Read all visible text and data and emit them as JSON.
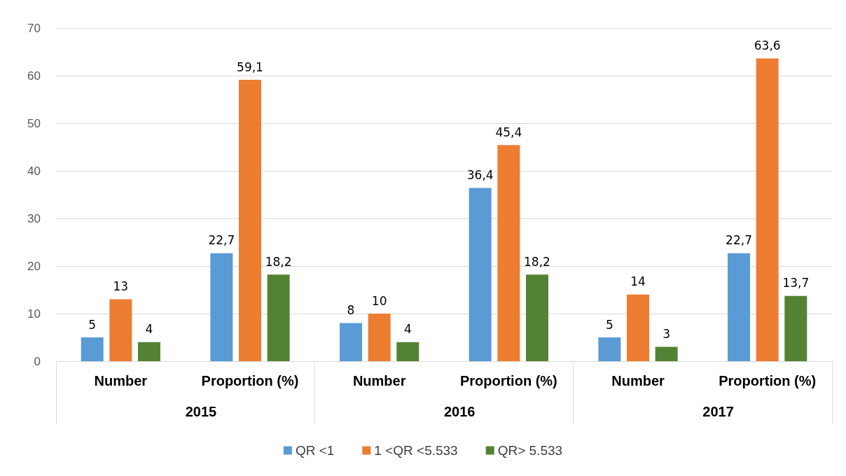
{
  "chart_data": {
    "type": "bar",
    "categories": [
      "Number",
      "Proportion (%)",
      "Number",
      "Proportion (%)",
      "Number",
      "Proportion (%)"
    ],
    "annotations": [
      "2015",
      "2016",
      "2017"
    ],
    "series": [
      {
        "name": "QR <1",
        "color": "#5b9bd5",
        "values": [
          5,
          22.7,
          8,
          36.4,
          5,
          22.7
        ],
        "value_labels": [
          "5",
          "22,7",
          "8",
          "36,4",
          "5",
          "22,7"
        ]
      },
      {
        "name": "1 <QR <5.533",
        "color": "#ed7d31",
        "values": [
          13,
          59.1,
          10,
          45.4,
          14,
          63.6
        ],
        "value_labels": [
          "13",
          "59,1",
          "10",
          "45,4",
          "14",
          "63,6"
        ]
      },
      {
        "name": "QR> 5.533",
        "color": "#548235",
        "values": [
          4,
          18.2,
          4,
          18.2,
          3,
          13.7
        ],
        "value_labels": [
          "4",
          "18,2",
          "4",
          "18,2",
          "3",
          "13,7"
        ]
      }
    ],
    "ylim": [
      0,
      70
    ],
    "yticks": [
      0,
      10,
      20,
      30,
      40,
      50,
      60,
      70
    ],
    "grid": "y",
    "legend": "bottom"
  }
}
